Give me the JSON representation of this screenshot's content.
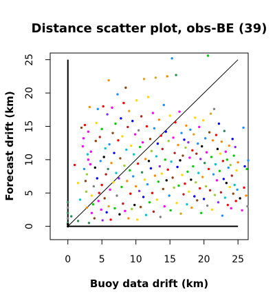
{
  "chart_data": {
    "type": "scatter",
    "title": "Distance scatter plot, obs-BE (39)",
    "xlabel": "Buoy data drift (km)",
    "ylabel": "Forecast drift (km)",
    "xlim": [
      -2.6,
      26.5
    ],
    "ylim": [
      -2.0,
      26.0
    ],
    "xticks": [
      0,
      5,
      10,
      15,
      20,
      25
    ],
    "yticks": [
      0,
      5,
      10,
      15,
      20,
      25
    ],
    "grid": false,
    "legend": "none",
    "reference_lines": [
      {
        "name": "identity",
        "x": [
          0,
          25
        ],
        "y": [
          0,
          25
        ]
      },
      {
        "name": "x-zero",
        "x": [
          0,
          0
        ],
        "y": [
          0,
          25
        ]
      },
      {
        "name": "y-zero",
        "x": [
          0,
          25
        ],
        "y": [
          0,
          0
        ]
      }
    ],
    "palette": [
      "#FF0000",
      "#00CD00",
      "#0000FF",
      "#FFD700",
      "#FF00FF",
      "#00C5CD",
      "#FF8C00",
      "#8B4513",
      "#808080",
      "#000000",
      "#9ACD32",
      "#1E90FF",
      "#B22222",
      "#2E8B57",
      "#8A2BE2",
      "#DAA520"
    ],
    "points": [
      [
        0.0,
        0.0,
        9
      ],
      [
        0.0,
        0.5,
        13
      ],
      [
        0.0,
        1.2,
        8
      ],
      [
        0.0,
        2.0,
        13
      ],
      [
        0.0,
        2.8,
        8
      ],
      [
        0.0,
        3.6,
        13
      ],
      [
        0.0,
        0.3,
        9
      ],
      [
        0.5,
        1.5,
        13
      ],
      [
        1.0,
        9.2,
        0
      ],
      [
        1.5,
        0.8,
        13
      ],
      [
        1.5,
        6.5,
        3
      ],
      [
        1.8,
        4.0,
        5
      ],
      [
        2.0,
        14.8,
        7
      ],
      [
        2.2,
        12.0,
        4
      ],
      [
        2.3,
        13.2,
        4
      ],
      [
        2.4,
        8.6,
        11
      ],
      [
        2.5,
        15.2,
        0
      ],
      [
        2.6,
        6.8,
        7
      ],
      [
        2.7,
        5.2,
        10
      ],
      [
        2.8,
        2.8,
        6
      ],
      [
        2.8,
        7.8,
        10
      ],
      [
        2.9,
        10.8,
        5
      ],
      [
        3.0,
        14.2,
        4
      ],
      [
        3.0,
        10.0,
        4
      ],
      [
        3.1,
        0.5,
        13
      ],
      [
        3.2,
        17.9,
        6
      ],
      [
        3.3,
        9.3,
        4
      ],
      [
        3.4,
        11.2,
        4
      ],
      [
        3.5,
        2.0,
        4
      ],
      [
        3.5,
        4.6,
        3
      ],
      [
        3.7,
        3.3,
        1
      ],
      [
        3.8,
        6.0,
        8
      ],
      [
        3.9,
        1.2,
        7
      ],
      [
        4.0,
        8.8,
        9
      ],
      [
        4.1,
        12.8,
        7
      ],
      [
        4.2,
        15.5,
        3
      ],
      [
        4.3,
        7.2,
        2
      ],
      [
        4.4,
        17.6,
        11
      ],
      [
        4.5,
        3.8,
        4
      ],
      [
        4.6,
        5.0,
        0
      ],
      [
        4.7,
        13.4,
        12
      ],
      [
        4.8,
        9.8,
        11
      ],
      [
        4.9,
        2.5,
        4
      ],
      [
        5.0,
        14.6,
        1
      ],
      [
        5.0,
        6.2,
        0
      ],
      [
        5.1,
        0.9,
        14
      ],
      [
        5.2,
        18.0,
        0
      ],
      [
        5.3,
        10.4,
        9
      ],
      [
        5.4,
        4.2,
        7
      ],
      [
        5.5,
        11.7,
        5
      ],
      [
        5.6,
        7.8,
        12
      ],
      [
        5.7,
        2.1,
        2
      ],
      [
        5.8,
        16.8,
        14
      ],
      [
        5.9,
        8.6,
        13
      ],
      [
        6.0,
        21.9,
        6
      ],
      [
        6.0,
        3.0,
        15
      ],
      [
        6.1,
        12.3,
        11
      ],
      [
        6.2,
        5.5,
        4
      ],
      [
        6.3,
        1.0,
        0
      ],
      [
        6.4,
        9.5,
        6
      ],
      [
        6.5,
        17.8,
        4
      ],
      [
        6.6,
        14.0,
        7
      ],
      [
        6.7,
        6.6,
        3
      ],
      [
        6.8,
        11.0,
        2
      ],
      [
        6.9,
        2.7,
        1
      ],
      [
        7.0,
        15.4,
        1
      ],
      [
        7.1,
        8.0,
        5
      ],
      [
        7.2,
        4.6,
        8
      ],
      [
        7.3,
        19.8,
        11
      ],
      [
        7.4,
        12.9,
        0
      ],
      [
        7.5,
        7.2,
        14
      ],
      [
        7.6,
        1.8,
        9
      ],
      [
        7.7,
        10.2,
        7
      ],
      [
        7.8,
        16.2,
        2
      ],
      [
        7.9,
        5.9,
        1
      ],
      [
        8.0,
        13.5,
        3
      ],
      [
        8.1,
        3.4,
        12
      ],
      [
        8.2,
        18.5,
        0
      ],
      [
        8.3,
        9.1,
        10
      ],
      [
        8.4,
        2.3,
        4
      ],
      [
        8.5,
        20.8,
        7
      ],
      [
        8.6,
        11.5,
        5
      ],
      [
        8.7,
        6.8,
        6
      ],
      [
        8.8,
        14.9,
        12
      ],
      [
        8.9,
        1.2,
        6
      ],
      [
        9.0,
        17.3,
        15
      ],
      [
        9.1,
        8.4,
        1
      ],
      [
        9.2,
        4.9,
        0
      ],
      [
        9.3,
        12.1,
        3
      ],
      [
        9.4,
        2.6,
        10
      ],
      [
        9.5,
        15.8,
        2
      ],
      [
        9.6,
        7.5,
        11
      ],
      [
        9.7,
        10.8,
        5
      ],
      [
        9.8,
        3.2,
        9
      ],
      [
        9.9,
        13.8,
        4
      ],
      [
        10.0,
        6.0,
        6
      ],
      [
        10.1,
        18.9,
        3
      ],
      [
        10.2,
        1.0,
        3
      ],
      [
        10.3,
        9.4,
        0
      ],
      [
        10.4,
        14.4,
        8
      ],
      [
        10.5,
        5.3,
        14
      ],
      [
        10.6,
        11.9,
        1
      ],
      [
        10.7,
        2.9,
        7
      ],
      [
        10.8,
        16.5,
        12
      ],
      [
        10.9,
        8.1,
        13
      ],
      [
        11.0,
        12.6,
        4
      ],
      [
        11.1,
        4.4,
        2
      ],
      [
        11.2,
        22.1,
        15
      ],
      [
        11.3,
        7.0,
        3
      ],
      [
        11.4,
        10.1,
        6
      ],
      [
        11.5,
        1.7,
        5
      ],
      [
        11.6,
        15.0,
        0
      ],
      [
        11.7,
        6.3,
        11
      ],
      [
        11.8,
        19.4,
        3
      ],
      [
        11.9,
        9.8,
        9
      ],
      [
        12.0,
        3.6,
        1
      ],
      [
        12.1,
        13.1,
        7
      ],
      [
        12.2,
        8.7,
        2
      ],
      [
        12.3,
        11.3,
        10
      ],
      [
        12.4,
        5.0,
        0
      ],
      [
        12.5,
        17.0,
        4
      ],
      [
        12.6,
        2.2,
        12
      ],
      [
        12.7,
        14.7,
        11
      ],
      [
        12.8,
        7.6,
        6
      ],
      [
        12.9,
        22.3,
        15
      ],
      [
        13.0,
        10.5,
        5
      ],
      [
        13.1,
        4.0,
        3
      ],
      [
        13.2,
        12.4,
        2
      ],
      [
        13.3,
        6.7,
        1
      ],
      [
        13.4,
        16.0,
        6
      ],
      [
        13.5,
        9.0,
        14
      ],
      [
        13.6,
        1.4,
        8
      ],
      [
        13.7,
        13.6,
        0
      ],
      [
        13.8,
        7.9,
        3
      ],
      [
        13.9,
        11.6,
        12
      ],
      [
        14.0,
        5.6,
        7
      ],
      [
        14.1,
        18.2,
        11
      ],
      [
        14.2,
        3.0,
        4
      ],
      [
        14.3,
        10.0,
        1
      ],
      [
        14.4,
        14.2,
        2
      ],
      [
        14.5,
        6.9,
        9
      ],
      [
        14.6,
        22.5,
        6
      ],
      [
        14.7,
        8.5,
        0
      ],
      [
        14.8,
        12.8,
        10
      ],
      [
        14.9,
        4.6,
        11
      ],
      [
        15.0,
        16.6,
        3
      ],
      [
        15.1,
        2.4,
        1
      ],
      [
        15.2,
        9.7,
        5
      ],
      [
        15.3,
        25.2,
        11
      ],
      [
        15.4,
        7.3,
        7
      ],
      [
        15.5,
        13.3,
        4
      ],
      [
        15.6,
        5.8,
        10
      ],
      [
        15.7,
        11.0,
        12
      ],
      [
        15.8,
        15.6,
        0
      ],
      [
        15.9,
        22.7,
        13
      ],
      [
        16.0,
        3.5,
        3
      ],
      [
        16.1,
        8.9,
        2
      ],
      [
        16.2,
        12.2,
        6
      ],
      [
        16.3,
        6.1,
        1
      ],
      [
        16.4,
        17.2,
        4
      ],
      [
        16.5,
        9.9,
        9
      ],
      [
        16.6,
        1.9,
        15
      ],
      [
        16.7,
        14.0,
        11
      ],
      [
        16.8,
        7.7,
        3
      ],
      [
        16.9,
        10.6,
        7
      ],
      [
        17.0,
        4.8,
        12
      ],
      [
        17.1,
        13.0,
        2
      ],
      [
        17.2,
        6.4,
        0
      ],
      [
        17.3,
        11.8,
        10
      ],
      [
        17.4,
        15.1,
        6
      ],
      [
        17.5,
        3.3,
        5
      ],
      [
        17.6,
        8.2,
        1
      ],
      [
        17.7,
        12.6,
        14
      ],
      [
        17.8,
        5.2,
        3
      ],
      [
        17.9,
        10.3,
        4
      ],
      [
        18.0,
        14.5,
        11
      ],
      [
        18.1,
        7.0,
        9
      ],
      [
        18.2,
        2.8,
        6
      ],
      [
        18.3,
        11.4,
        0
      ],
      [
        18.4,
        9.0,
        1
      ],
      [
        18.5,
        13.8,
        15
      ],
      [
        18.6,
        4.5,
        2
      ],
      [
        18.7,
        16.3,
        3
      ],
      [
        18.8,
        6.6,
        10
      ],
      [
        18.9,
        10.9,
        12
      ],
      [
        19.0,
        3.9,
        7
      ],
      [
        19.1,
        12.4,
        11
      ],
      [
        19.2,
        8.0,
        5
      ],
      [
        19.3,
        14.9,
        4
      ],
      [
        19.4,
        5.7,
        0
      ],
      [
        19.5,
        10.1,
        14
      ],
      [
        19.6,
        2.0,
        1
      ],
      [
        19.7,
        12.0,
        9
      ],
      [
        19.8,
        7.4,
        6
      ],
      [
        19.9,
        15.9,
        3
      ],
      [
        20.0,
        4.1,
        2
      ],
      [
        20.1,
        9.5,
        13
      ],
      [
        20.2,
        13.2,
        11
      ],
      [
        20.3,
        6.0,
        10
      ],
      [
        20.4,
        11.1,
        4
      ],
      [
        20.5,
        3.1,
        8
      ],
      [
        20.6,
        25.6,
        1
      ],
      [
        20.7,
        8.6,
        0
      ],
      [
        20.8,
        14.1,
        7
      ],
      [
        20.9,
        5.4,
        12
      ],
      [
        21.0,
        16.9,
        15
      ],
      [
        21.1,
        10.4,
        1
      ],
      [
        21.2,
        2.5,
        3
      ],
      [
        21.3,
        12.9,
        6
      ],
      [
        21.4,
        7.8,
        11
      ],
      [
        21.5,
        17.6,
        8
      ],
      [
        21.6,
        4.7,
        10
      ],
      [
        21.7,
        9.3,
        5
      ],
      [
        21.8,
        13.7,
        0
      ],
      [
        21.9,
        6.9,
        4
      ],
      [
        22.0,
        11.6,
        9
      ],
      [
        22.1,
        3.6,
        14
      ],
      [
        22.2,
        15.4,
        2
      ],
      [
        22.3,
        8.3,
        1
      ],
      [
        22.4,
        10.9,
        3
      ],
      [
        22.5,
        5.1,
        12
      ],
      [
        22.6,
        12.7,
        6
      ],
      [
        22.7,
        1.6,
        11
      ],
      [
        22.8,
        9.8,
        0
      ],
      [
        22.9,
        7.1,
        2
      ],
      [
        23.0,
        14.3,
        13
      ],
      [
        23.1,
        4.3,
        5
      ],
      [
        23.2,
        11.2,
        4
      ],
      [
        23.3,
        6.5,
        9
      ],
      [
        23.4,
        10.0,
        1
      ],
      [
        23.5,
        3.2,
        0
      ],
      [
        23.6,
        8.8,
        11
      ],
      [
        23.7,
        12.1,
        6
      ],
      [
        23.8,
        5.9,
        3
      ],
      [
        23.9,
        9.2,
        10
      ],
      [
        24.0,
        2.7,
        4
      ],
      [
        24.1,
        7.6,
        12
      ],
      [
        24.2,
        13.1,
        2
      ],
      [
        24.3,
        4.9,
        7
      ],
      [
        24.4,
        10.6,
        1
      ],
      [
        24.5,
        6.2,
        5
      ],
      [
        24.6,
        11.9,
        14
      ],
      [
        24.7,
        3.8,
        0
      ],
      [
        24.8,
        8.4,
        3
      ],
      [
        24.9,
        5.5,
        11
      ],
      [
        25.0,
        9.6,
        6
      ],
      [
        25.3,
        4.2,
        9
      ],
      [
        25.6,
        2.4,
        4
      ],
      [
        25.8,
        14.8,
        11
      ],
      [
        25.9,
        5.8,
        0
      ],
      [
        26.0,
        9.0,
        2
      ],
      [
        26.2,
        4.6,
        6
      ],
      [
        26.3,
        8.6,
        1
      ],
      [
        26.4,
        3.0,
        8
      ],
      [
        26.5,
        9.9,
        11
      ]
    ]
  }
}
